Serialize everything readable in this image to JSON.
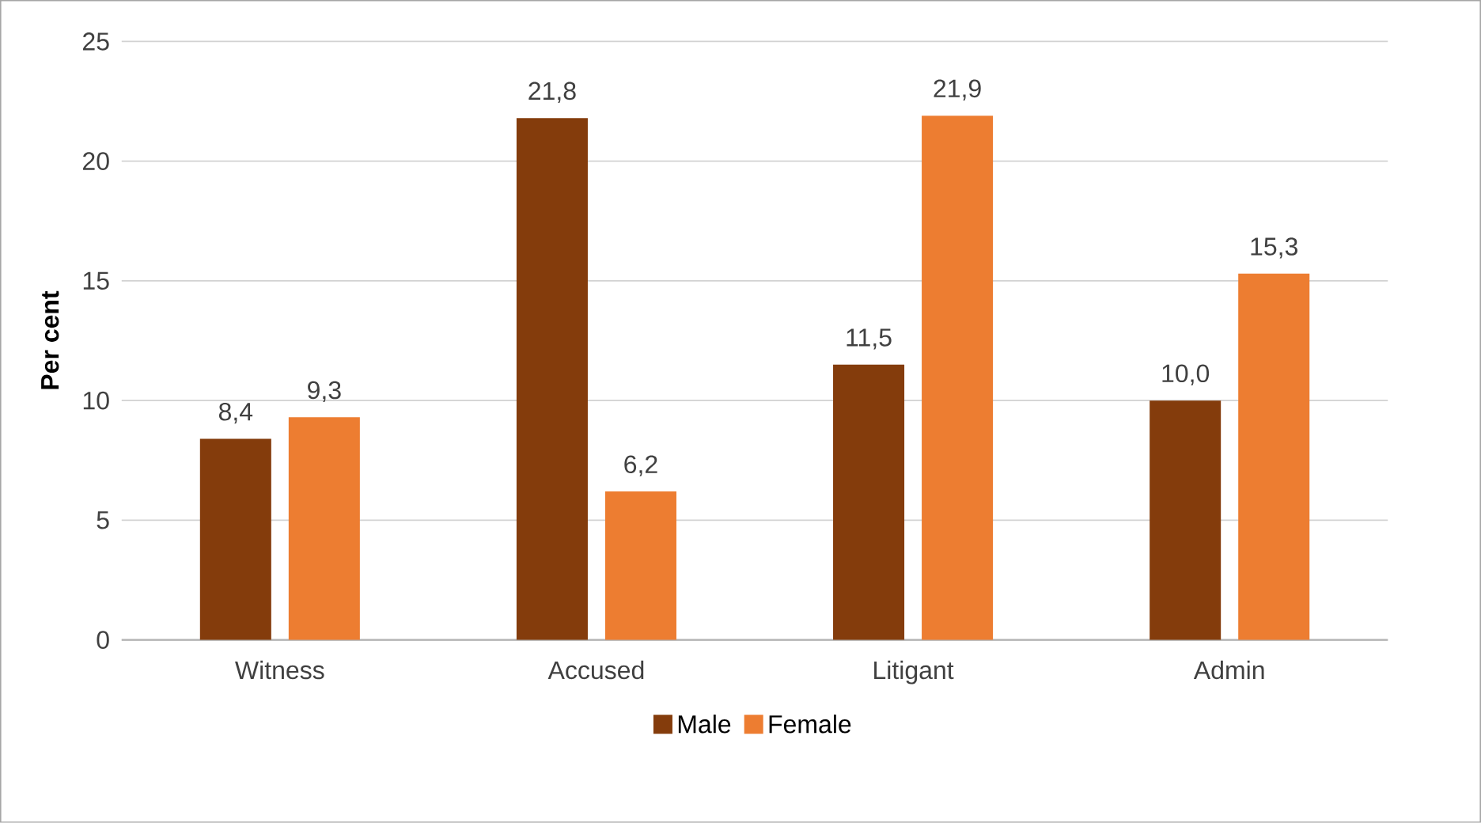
{
  "chart_data": {
    "type": "bar",
    "ylabel": "Per cent",
    "categories": [
      "Witness",
      "Accused",
      "Litigant",
      "Admin"
    ],
    "series": [
      {
        "name": "Male",
        "color": "#843c0c",
        "values": [
          8.4,
          21.8,
          11.5,
          10.0
        ],
        "value_labels": [
          "8,4",
          "21,8",
          "11,5",
          "10,0"
        ]
      },
      {
        "name": "Female",
        "color": "#ed7d31",
        "values": [
          9.3,
          6.2,
          21.9,
          15.3
        ],
        "value_labels": [
          "9,3",
          "6,2",
          "21,9",
          "15,3"
        ]
      }
    ],
    "ylim": [
      0,
      25
    ],
    "yticks": [
      0,
      5,
      10,
      15,
      20,
      25
    ],
    "grid": "y",
    "legend": "bottom"
  }
}
